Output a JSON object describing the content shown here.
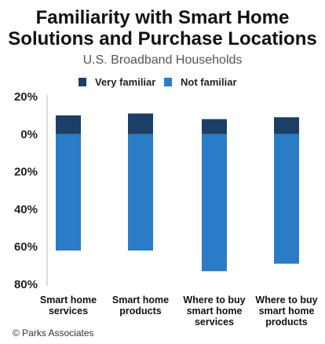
{
  "chart_data": {
    "type": "bar",
    "title_lines": [
      "Familiarity with Smart Home",
      "Solutions and Purchase Locations"
    ],
    "subtitle": "U.S. Broadband Households",
    "xlabel": "",
    "ylabel": "",
    "ylim": [
      -80,
      20
    ],
    "yticks": [
      {
        "value": 20,
        "label": "20%"
      },
      {
        "value": 0,
        "label": "0%"
      },
      {
        "value": -20,
        "label": "20%"
      },
      {
        "value": -40,
        "label": "40%"
      },
      {
        "value": -60,
        "label": "60%"
      },
      {
        "value": -80,
        "label": "80%"
      }
    ],
    "grid": false,
    "legend_position": "top-center",
    "categories": [
      {
        "lines": [
          "Smart home",
          "services"
        ]
      },
      {
        "lines": [
          "Smart home",
          "products"
        ]
      },
      {
        "lines": [
          "Where to buy",
          "smart home",
          "services"
        ]
      },
      {
        "lines": [
          "Where to buy",
          "smart home",
          "products"
        ]
      }
    ],
    "series": [
      {
        "name": "Very familiar",
        "color": "#1b3f66",
        "values": [
          10,
          11,
          8,
          9
        ]
      },
      {
        "name": "Not familiar",
        "color": "#2a7cc7",
        "values": [
          -62,
          -62,
          -73,
          -69
        ]
      }
    ],
    "source": "© Parks Associates"
  }
}
